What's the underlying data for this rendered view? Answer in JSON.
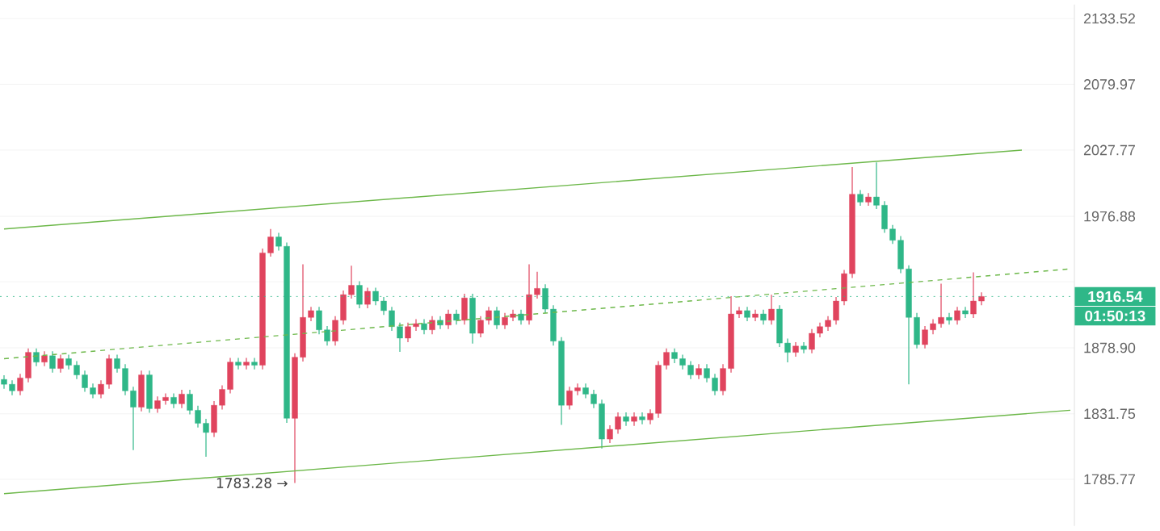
{
  "chart_data": {
    "type": "candlestick",
    "categories": [
      null,
      null,
      null,
      null,
      null,
      null,
      null,
      null,
      null,
      null,
      null,
      null,
      null,
      null,
      null,
      null,
      null,
      null,
      null,
      null,
      null,
      null,
      null,
      null,
      null,
      null,
      null,
      null,
      null,
      null,
      null,
      null,
      null,
      null,
      null,
      null,
      null,
      null,
      null,
      null,
      null,
      null,
      null,
      null,
      null,
      null,
      null,
      null,
      null,
      null,
      null,
      null,
      null,
      null,
      null,
      null,
      null,
      null,
      null,
      null,
      null,
      null,
      null,
      null,
      null,
      null,
      null,
      null,
      null,
      null,
      null,
      null,
      null,
      null,
      null,
      null,
      null,
      null,
      null,
      null,
      null,
      null,
      null,
      null,
      null,
      null,
      null,
      null,
      null,
      null,
      null,
      null,
      null,
      null,
      null,
      null,
      null,
      null,
      null,
      null,
      null,
      null,
      null,
      null,
      null,
      null,
      null,
      null,
      null,
      null,
      null,
      null,
      null,
      null,
      null,
      null,
      null,
      null,
      null,
      null,
      null,
      null,
      null,
      null,
      null,
      null,
      null,
      null,
      null,
      null,
      null,
      null,
      null
    ],
    "ohlc": [
      [
        1856.0,
        1859.0,
        1849.5,
        1852.5
      ],
      [
        1852.5,
        1855.5,
        1844.9,
        1847.9
      ],
      [
        1847.9,
        1860.1,
        1844.9,
        1857.1
      ],
      [
        1857.1,
        1878.5,
        1854.1,
        1875.5
      ],
      [
        1875.5,
        1878.5,
        1865.6,
        1868.6
      ],
      [
        1868.6,
        1876.2,
        1865.6,
        1873.2
      ],
      [
        1873.2,
        1876.2,
        1861.0,
        1864.0
      ],
      [
        1864.0,
        1873.9,
        1861.0,
        1870.9
      ],
      [
        1870.9,
        1873.9,
        1863.3,
        1866.3
      ],
      [
        1866.3,
        1869.3,
        1856.4,
        1859.4
      ],
      [
        1859.4,
        1862.4,
        1847.2,
        1850.2
      ],
      [
        1850.2,
        1853.2,
        1842.6,
        1845.6
      ],
      [
        1845.6,
        1855.5,
        1842.6,
        1852.5
      ],
      [
        1852.5,
        1873.9,
        1849.5,
        1870.9
      ],
      [
        1870.9,
        1873.9,
        1861.0,
        1864.0
      ],
      [
        1864.0,
        1867.0,
        1844.9,
        1847.9
      ],
      [
        1847.9,
        1850.9,
        1806.0,
        1836.4
      ],
      [
        1836.4,
        1862.4,
        1833.4,
        1859.4
      ],
      [
        1859.4,
        1862.4,
        1832.3,
        1835.3
      ],
      [
        1835.3,
        1844.0,
        1832.3,
        1841.0
      ],
      [
        1841.0,
        1846.3,
        1838.0,
        1843.3
      ],
      [
        1843.3,
        1846.3,
        1835.7,
        1838.7
      ],
      [
        1838.7,
        1848.6,
        1835.7,
        1845.6
      ],
      [
        1845.6,
        1848.6,
        1831.2,
        1834.2
      ],
      [
        1834.2,
        1837.2,
        1821.9,
        1824.9
      ],
      [
        1824.9,
        1827.9,
        1801.5,
        1818.4
      ],
      [
        1818.4,
        1840.6,
        1815.4,
        1837.6
      ],
      [
        1837.6,
        1852.0,
        1834.6,
        1849.0
      ],
      [
        1849.0,
        1871.6,
        1846.0,
        1868.6
      ],
      [
        1868.6,
        1871.6,
        1863.3,
        1866.3
      ],
      [
        1866.3,
        1871.6,
        1863.3,
        1868.6
      ],
      [
        1868.6,
        1871.6,
        1863.3,
        1866.3
      ],
      [
        1866.3,
        1952.1,
        1863.3,
        1949.1
      ],
      [
        1949.1,
        1967.2,
        1946.1,
        1961.2
      ],
      [
        1961.2,
        1964.2,
        1950.9,
        1953.9
      ],
      [
        1953.9,
        1956.9,
        1825.4,
        1828.4
      ],
      [
        1828.4,
        1875.0,
        1783.28,
        1872.0
      ],
      [
        1872.0,
        1940.6,
        1869.0,
        1901.3
      ],
      [
        1901.3,
        1909.1,
        1898.3,
        1906.1
      ],
      [
        1906.1,
        1909.1,
        1888.9,
        1891.9
      ],
      [
        1891.9,
        1894.9,
        1880.6,
        1883.6
      ],
      [
        1883.6,
        1902.0,
        1880.6,
        1899.0
      ],
      [
        1899.0,
        1920.9,
        1896.0,
        1917.9
      ],
      [
        1917.9,
        1939.4,
        1914.9,
        1924.9
      ],
      [
        1924.9,
        1927.9,
        1907.8,
        1910.8
      ],
      [
        1910.8,
        1923.2,
        1907.8,
        1920.2
      ],
      [
        1920.2,
        1923.2,
        1910.1,
        1913.1
      ],
      [
        1913.1,
        1916.1,
        1903.1,
        1906.1
      ],
      [
        1906.1,
        1909.1,
        1891.3,
        1894.3
      ],
      [
        1894.3,
        1897.3,
        1876.0,
        1886.0
      ],
      [
        1886.0,
        1897.3,
        1883.0,
        1894.3
      ],
      [
        1894.3,
        1899.6,
        1891.3,
        1896.6
      ],
      [
        1896.6,
        1899.6,
        1888.9,
        1891.9
      ],
      [
        1891.9,
        1902.0,
        1888.9,
        1899.0
      ],
      [
        1899.0,
        1902.0,
        1892.5,
        1895.5
      ],
      [
        1895.5,
        1906.7,
        1892.5,
        1903.7
      ],
      [
        1903.7,
        1906.7,
        1896.0,
        1899.0
      ],
      [
        1899.0,
        1918.5,
        1896.0,
        1915.5
      ],
      [
        1915.5,
        1918.5,
        1882.0,
        1889.5
      ],
      [
        1889.5,
        1902.0,
        1886.5,
        1899.0
      ],
      [
        1899.0,
        1909.1,
        1896.0,
        1906.1
      ],
      [
        1906.1,
        1909.1,
        1892.5,
        1895.5
      ],
      [
        1895.5,
        1904.3,
        1892.5,
        1901.3
      ],
      [
        1901.3,
        1906.7,
        1898.3,
        1903.7
      ],
      [
        1903.7,
        1906.7,
        1896.0,
        1899.0
      ],
      [
        1899.0,
        1940.6,
        1896.0,
        1917.9
      ],
      [
        1917.9,
        1935.0,
        1914.9,
        1922.6
      ],
      [
        1922.6,
        1925.6,
        1904.2,
        1907.2
      ],
      [
        1907.2,
        1910.2,
        1880.6,
        1883.6
      ],
      [
        1883.6,
        1886.6,
        1823.9,
        1837.6
      ],
      [
        1837.6,
        1850.9,
        1834.6,
        1847.9
      ],
      [
        1847.9,
        1853.2,
        1844.9,
        1850.2
      ],
      [
        1850.2,
        1853.2,
        1842.6,
        1845.6
      ],
      [
        1845.6,
        1848.6,
        1835.7,
        1838.7
      ],
      [
        1838.7,
        1841.7,
        1807.1,
        1813.9
      ],
      [
        1813.9,
        1823.6,
        1810.9,
        1820.6
      ],
      [
        1820.6,
        1832.6,
        1817.6,
        1829.6
      ],
      [
        1829.6,
        1832.6,
        1823.2,
        1826.2
      ],
      [
        1826.2,
        1832.6,
        1823.2,
        1829.6
      ],
      [
        1829.6,
        1832.6,
        1824.3,
        1827.3
      ],
      [
        1827.3,
        1834.8,
        1824.3,
        1831.8
      ],
      [
        1831.8,
        1869.3,
        1828.8,
        1866.3
      ],
      [
        1866.3,
        1878.5,
        1863.3,
        1875.5
      ],
      [
        1875.5,
        1878.5,
        1867.9,
        1870.9
      ],
      [
        1870.9,
        1873.9,
        1863.3,
        1866.3
      ],
      [
        1866.3,
        1869.3,
        1856.4,
        1859.4
      ],
      [
        1859.4,
        1867.0,
        1856.4,
        1864.0
      ],
      [
        1864.0,
        1867.0,
        1854.1,
        1857.1
      ],
      [
        1857.1,
        1860.1,
        1844.9,
        1847.9
      ],
      [
        1847.9,
        1867.0,
        1844.9,
        1864.0
      ],
      [
        1864.0,
        1916.7,
        1861.0,
        1903.7
      ],
      [
        1903.7,
        1909.1,
        1900.7,
        1906.1
      ],
      [
        1906.1,
        1909.1,
        1898.3,
        1901.3
      ],
      [
        1901.3,
        1906.7,
        1898.3,
        1903.7
      ],
      [
        1903.7,
        1906.7,
        1896.0,
        1899.0
      ],
      [
        1899.0,
        1918.0,
        1896.0,
        1907.2
      ],
      [
        1907.2,
        1910.2,
        1879.4,
        1882.4
      ],
      [
        1882.4,
        1885.4,
        1868.4,
        1875.5
      ],
      [
        1875.5,
        1883.1,
        1872.5,
        1880.1
      ],
      [
        1880.1,
        1883.1,
        1874.8,
        1877.8
      ],
      [
        1877.8,
        1892.5,
        1874.8,
        1889.5
      ],
      [
        1889.5,
        1897.3,
        1886.5,
        1894.3
      ],
      [
        1894.3,
        1902.0,
        1891.3,
        1899.0
      ],
      [
        1899.0,
        1916.1,
        1896.0,
        1913.1
      ],
      [
        1913.1,
        1936.4,
        1910.1,
        1933.4
      ],
      [
        1933.4,
        2014.5,
        1930.4,
        1993.9
      ],
      [
        1993.9,
        1996.9,
        1984.8,
        1987.8
      ],
      [
        1987.8,
        1994.5,
        1984.8,
        1991.5
      ],
      [
        1991.5,
        2018.1,
        1982.4,
        1985.4
      ],
      [
        1985.4,
        1988.4,
        1964.2,
        1967.2
      ],
      [
        1967.2,
        1970.2,
        1955.7,
        1958.7
      ],
      [
        1958.7,
        1961.7,
        1933.9,
        1936.9
      ],
      [
        1936.9,
        1939.9,
        1852.5,
        1901.3
      ],
      [
        1901.3,
        1904.3,
        1878.3,
        1881.3
      ],
      [
        1881.3,
        1894.9,
        1878.3,
        1891.9
      ],
      [
        1891.9,
        1899.6,
        1888.9,
        1896.6
      ],
      [
        1896.6,
        1926.0,
        1893.6,
        1901.3
      ],
      [
        1901.3,
        1904.3,
        1896.0,
        1899.0
      ],
      [
        1899.0,
        1909.1,
        1896.0,
        1906.1
      ],
      [
        1906.1,
        1909.1,
        1900.7,
        1903.7
      ],
      [
        1903.7,
        1934.6,
        1900.7,
        1913.1
      ],
      [
        1913.1,
        1919.5,
        1910.1,
        1916.54
      ],
      null,
      null,
      null,
      null,
      null,
      null,
      null,
      null,
      null,
      null,
      null
    ],
    "colors": [
      "#2fb788",
      "#2fb788",
      "#e0445e",
      "#e0445e",
      "#2fb788",
      "#e0445e",
      "#2fb788",
      "#e0445e",
      "#2fb788",
      "#2fb788",
      "#2fb788",
      "#2fb788",
      "#e0445e",
      "#e0445e",
      "#2fb788",
      "#2fb788",
      "#2fb788",
      "#e0445e",
      "#2fb788",
      "#e0445e",
      "#e0445e",
      "#2fb788",
      "#e0445e",
      "#2fb788",
      "#2fb788",
      "#2fb788",
      "#e0445e",
      "#e0445e",
      "#e0445e",
      "#2fb788",
      "#e0445e",
      "#2fb788",
      "#e0445e",
      "#e0445e",
      "#2fb788",
      "#2fb788",
      "#e0445e",
      "#e0445e",
      "#e0445e",
      "#2fb788",
      "#2fb788",
      "#e0445e",
      "#e0445e",
      "#e0445e",
      "#2fb788",
      "#e0445e",
      "#2fb788",
      "#2fb788",
      "#2fb788",
      "#2fb788",
      "#e0445e",
      "#e0445e",
      "#2fb788",
      "#e0445e",
      "#2fb788",
      "#e0445e",
      "#2fb788",
      "#e0445e",
      "#2fb788",
      "#e0445e",
      "#e0445e",
      "#2fb788",
      "#e0445e",
      "#e0445e",
      "#2fb788",
      "#e0445e",
      "#e0445e",
      "#2fb788",
      "#2fb788",
      "#2fb788",
      "#e0445e",
      "#e0445e",
      "#2fb788",
      "#2fb788",
      "#2fb788",
      "#e0445e",
      "#e0445e",
      "#2fb788",
      "#e0445e",
      "#2fb788",
      "#e0445e",
      "#e0445e",
      "#e0445e",
      "#2fb788",
      "#2fb788",
      "#2fb788",
      "#e0445e",
      "#2fb788",
      "#2fb788",
      "#e0445e",
      "#e0445e",
      "#e0445e",
      "#2fb788",
      "#e0445e",
      "#2fb788",
      "#e0445e",
      "#2fb788",
      "#2fb788",
      "#e0445e",
      "#2fb788",
      "#e0445e",
      "#e0445e",
      "#e0445e",
      "#e0445e",
      "#e0445e",
      "#e0445e",
      "#2fb788",
      "#e0445e",
      "#2fb788",
      "#2fb788",
      "#2fb788",
      "#2fb788",
      "#2fb788",
      "#2fb788",
      "#e0445e",
      "#e0445e",
      "#e0445e",
      "#2fb788",
      "#e0445e",
      "#2fb788",
      "#e0445e",
      "#e0445e",
      null,
      null,
      null,
      null,
      null,
      null,
      null,
      null,
      null,
      null,
      null
    ],
    "series": [
      {
        "type": "line",
        "color": "#6db84a",
        "line_style": "solid",
        "values": [
          1967.2,
          null,
          null,
          null,
          null,
          null,
          null,
          null,
          null,
          null,
          null,
          null,
          null,
          null,
          null,
          null,
          null,
          null,
          null,
          null,
          null,
          null,
          null,
          null,
          null,
          null,
          null,
          null,
          null,
          null,
          null,
          null,
          null,
          null,
          null,
          null,
          null,
          null,
          null,
          null,
          null,
          null,
          null,
          null,
          null,
          null,
          null,
          null,
          null,
          null,
          null,
          null,
          null,
          null,
          null,
          null,
          null,
          null,
          null,
          null,
          null,
          null,
          null,
          null,
          null,
          null,
          null,
          null,
          null,
          null,
          null,
          null,
          null,
          null,
          null,
          null,
          null,
          null,
          null,
          null,
          null,
          null,
          null,
          null,
          null,
          null,
          null,
          null,
          null,
          null,
          null,
          null,
          null,
          null,
          null,
          null,
          null,
          null,
          null,
          null,
          null,
          null,
          null,
          null,
          null,
          null,
          null,
          null,
          null,
          null,
          null,
          null,
          null,
          null,
          null,
          null,
          null,
          null,
          null,
          null,
          null,
          null,
          null,
          null,
          null,
          null,
          2027.8,
          null,
          null,
          null,
          null,
          null,
          null
        ]
      },
      {
        "type": "line",
        "color": "#6db84a",
        "line_style": "dashed",
        "values": [
          1870.9,
          null,
          null,
          null,
          null,
          null,
          null,
          null,
          null,
          null,
          null,
          null,
          null,
          null,
          null,
          null,
          null,
          null,
          null,
          null,
          null,
          null,
          null,
          null,
          null,
          null,
          null,
          null,
          null,
          null,
          null,
          null,
          null,
          null,
          null,
          null,
          null,
          null,
          null,
          null,
          null,
          null,
          null,
          null,
          null,
          null,
          null,
          null,
          null,
          null,
          null,
          null,
          null,
          null,
          null,
          null,
          null,
          null,
          null,
          null,
          null,
          null,
          null,
          null,
          null,
          null,
          null,
          null,
          null,
          null,
          null,
          null,
          null,
          null,
          null,
          null,
          null,
          null,
          null,
          null,
          null,
          null,
          null,
          null,
          null,
          null,
          null,
          null,
          null,
          null,
          null,
          null,
          null,
          null,
          null,
          null,
          null,
          null,
          null,
          null,
          null,
          null,
          null,
          null,
          null,
          null,
          null,
          null,
          null,
          null,
          null,
          null,
          null,
          null,
          null,
          null,
          null,
          null,
          null,
          null,
          null,
          null,
          null,
          null,
          null,
          null,
          null,
          null,
          null,
          null,
          null,
          null,
          1936.9
        ]
      },
      {
        "type": "line",
        "color": "#6db84a",
        "line_style": "solid",
        "values": [
          1775.9,
          null,
          null,
          null,
          null,
          null,
          null,
          null,
          null,
          null,
          null,
          null,
          null,
          null,
          null,
          null,
          null,
          null,
          null,
          null,
          null,
          null,
          null,
          null,
          null,
          null,
          null,
          null,
          null,
          null,
          null,
          null,
          null,
          null,
          null,
          null,
          null,
          null,
          null,
          null,
          null,
          null,
          null,
          null,
          null,
          null,
          null,
          null,
          null,
          null,
          null,
          null,
          null,
          null,
          null,
          null,
          null,
          null,
          null,
          null,
          null,
          null,
          null,
          null,
          null,
          null,
          null,
          null,
          null,
          null,
          null,
          null,
          null,
          null,
          null,
          null,
          null,
          null,
          null,
          null,
          null,
          null,
          null,
          null,
          null,
          null,
          null,
          null,
          null,
          null,
          null,
          null,
          null,
          null,
          null,
          null,
          null,
          null,
          null,
          null,
          null,
          null,
          null,
          null,
          null,
          null,
          null,
          null,
          null,
          null,
          null,
          null,
          null,
          null,
          null,
          null,
          null,
          null,
          null,
          null,
          null,
          null,
          null,
          null,
          null,
          null,
          null,
          null,
          null,
          null,
          null,
          null,
          1834.0
        ]
      }
    ],
    "ylim": [
      1754,
      2145
    ],
    "yticks": [
      1785.77,
      1831.75,
      {
        "value": 1878.9,
        "label": "1878.90"
      },
      {
        "value": 1927.27,
        "label": null
      },
      1976.88,
      2027.77,
      2079.97,
      2133.52
    ],
    "log": true,
    "grid": "y",
    "tick_labels": "y",
    "ref_lines": [
      {
        "axis": "y",
        "value": 1916.54,
        "label": "1916.54",
        "color": "#2fb788"
      }
    ],
    "annotations": [
      "1783.28 →",
      "01:50:13"
    ]
  }
}
